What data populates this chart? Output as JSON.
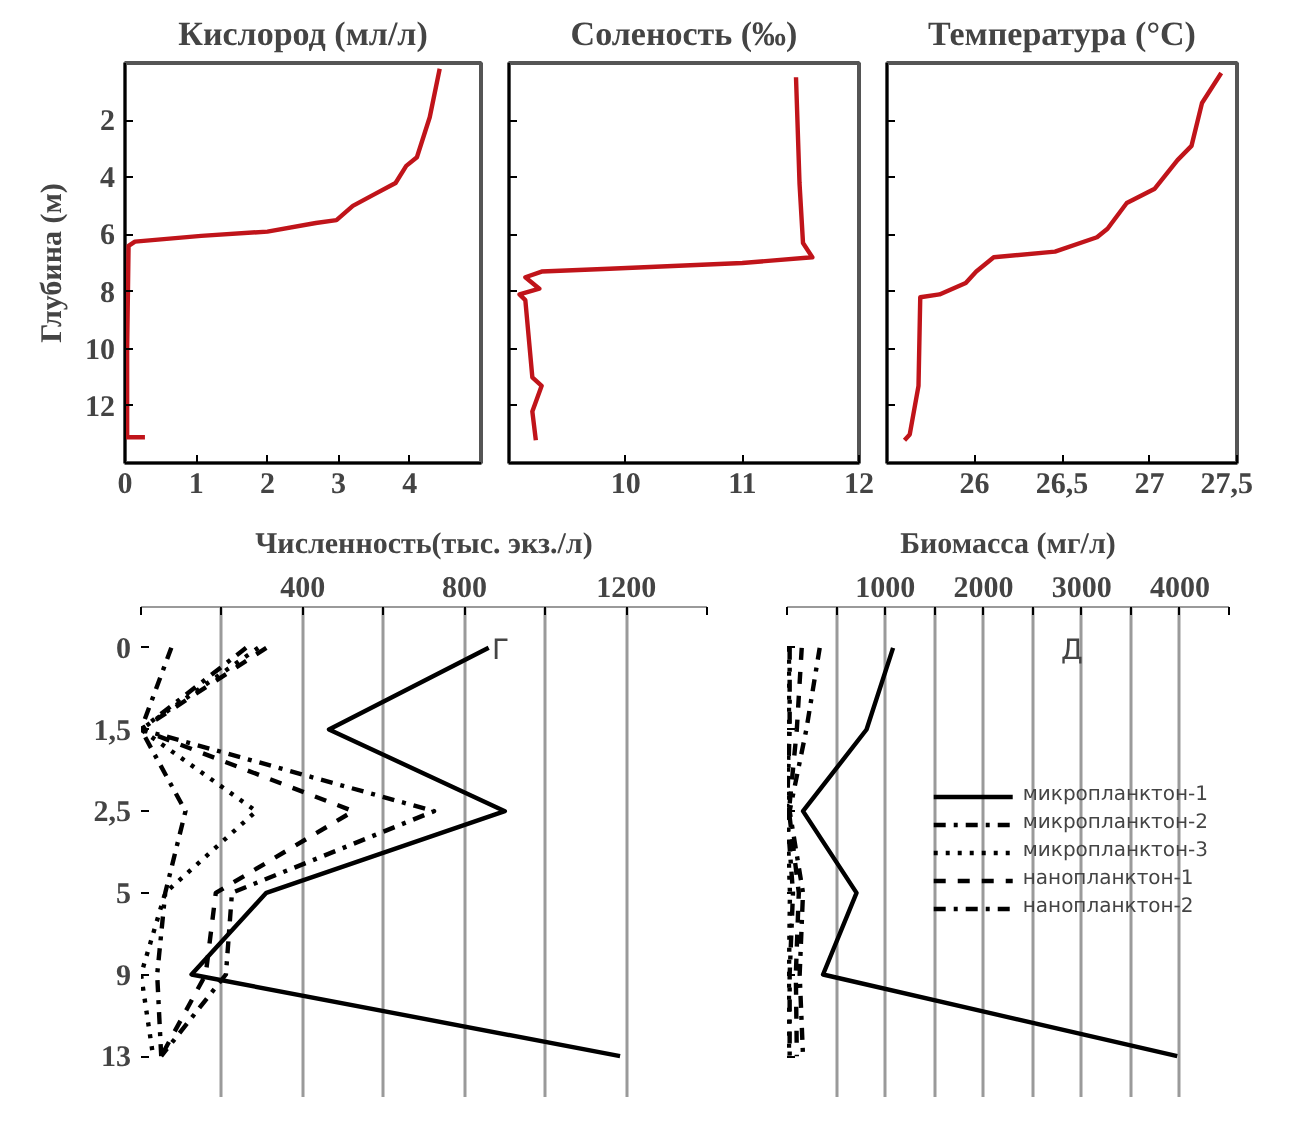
{
  "chart_data": [
    {
      "type": "line",
      "title": "Кислород (мл/л)",
      "ylabel": "Глубина (м)",
      "xlim": [
        0,
        5
      ],
      "xticks": [
        0,
        1,
        2,
        3,
        4
      ],
      "ylim": [
        14,
        0
      ],
      "yticks": [
        2,
        4,
        6,
        8,
        10,
        12
      ],
      "grid": false,
      "series": [
        {
          "color": "#c0141a",
          "x": [
            4.42,
            4.28,
            4.1,
            3.95,
            3.8,
            3.5,
            3.2,
            2.97,
            2.68,
            2.0,
            1.07,
            0.14,
            0.05,
            0.03,
            0.03,
            0.28
          ],
          "values": [
            0.2,
            1.9,
            3.3,
            3.6,
            4.2,
            4.6,
            5.0,
            5.5,
            5.6,
            5.9,
            6.05,
            6.25,
            6.4,
            10.0,
            13.1,
            13.1
          ]
        }
      ]
    },
    {
      "type": "line",
      "title": "Соленость (‰)",
      "xlim": [
        9,
        12
      ],
      "xticks": [
        10,
        11,
        12
      ],
      "ylim": [
        14,
        0
      ],
      "yticks": [
        2,
        4,
        6,
        8,
        10,
        12
      ],
      "grid": false,
      "tick_labels": "x",
      "series": [
        {
          "color": "#c0141a",
          "x": [
            11.46,
            11.49,
            11.52,
            11.6,
            11.0,
            9.86,
            9.28,
            9.14,
            9.26,
            9.09,
            9.14,
            9.2,
            9.28,
            9.2,
            9.23
          ],
          "values": [
            0.5,
            4.2,
            6.3,
            6.8,
            7.0,
            7.2,
            7.3,
            7.5,
            7.9,
            8.1,
            8.3,
            11.0,
            11.3,
            12.2,
            13.2
          ]
        }
      ]
    },
    {
      "type": "line",
      "title": "Температура (°C)",
      "xlim": [
        25.5,
        27.5
      ],
      "xticks": [
        26,
        {
          "value": 26.5,
          "label": "26,5"
        },
        27,
        {
          "value": 27.5,
          "label": "27,5"
        }
      ],
      "ylim": [
        14,
        0
      ],
      "yticks": [
        2,
        4,
        6,
        8,
        10,
        12
      ],
      "grid": false,
      "tick_labels": "x",
      "series": [
        {
          "color": "#c0141a",
          "x": [
            27.41,
            27.3,
            27.24,
            27.16,
            27.03,
            26.87,
            26.76,
            26.7,
            26.46,
            26.11,
            26.01,
            25.95,
            25.8,
            25.69,
            25.68,
            25.63,
            25.6
          ],
          "values": [
            0.35,
            1.4,
            2.9,
            3.4,
            4.4,
            4.9,
            5.8,
            6.1,
            6.6,
            6.8,
            7.3,
            7.7,
            8.1,
            8.2,
            11.3,
            13.0,
            13.2
          ]
        }
      ]
    },
    {
      "type": "line",
      "orientation": "horizontal",
      "xlabel": "Численность(тыс. экз./л)",
      "categories": [
        "0",
        "1,5",
        "2,5",
        "5",
        "9",
        "13"
      ],
      "xlim": [
        0,
        1400
      ],
      "xticks": [
        {
          "value": 0,
          "label": null
        },
        {
          "value": 200,
          "label": null
        },
        400,
        {
          "value": 600,
          "label": null
        },
        800,
        {
          "value": 1000,
          "label": null
        },
        1200,
        {
          "value": 1400,
          "label": null
        }
      ],
      "grid": "x",
      "annotations": [
        "Г"
      ],
      "series": [
        {
          "color": "#000000",
          "line_style": "solid",
          "values": [
            860,
            465,
            900,
            310,
            125,
            1185
          ]
        },
        {
          "color": "#000000",
          "line_style": "dashdot",
          "values": [
            260,
            0,
            725,
            225,
            210,
            50
          ]
        },
        {
          "color": "#000000",
          "line_style": "dotted",
          "values": [
            290,
            0,
            285,
            60,
            0,
            30
          ]
        },
        {
          "color": "#000000",
          "line_style": "dashed",
          "values": [
            310,
            0,
            525,
            185,
            160,
            50
          ]
        },
        {
          "color": "#000000",
          "line_style": "dashdot",
          "values": [
            75,
            0,
            110,
            60,
            40,
            50
          ]
        }
      ]
    },
    {
      "type": "line",
      "orientation": "horizontal",
      "xlabel": "Биомасса (мг/л)",
      "categories": [
        null,
        null,
        null,
        null,
        null,
        null
      ],
      "xlim": [
        0,
        4500
      ],
      "xticks": [
        {
          "value": 0,
          "label": null
        },
        {
          "value": 500,
          "label": null
        },
        1000,
        {
          "value": 1500,
          "label": null
        },
        2000,
        {
          "value": 2500,
          "label": null
        },
        3000,
        {
          "value": 3500,
          "label": null
        },
        4000,
        {
          "value": 4500,
          "label": null
        }
      ],
      "grid": "x",
      "tick_labels": "x",
      "legend": "right",
      "annotations": [
        "Д"
      ],
      "series": [
        {
          "name": "микропланктон-1",
          "color": "#000000",
          "line_style": "solid",
          "values": [
            1080,
            810,
            163,
            708,
            367,
            3973
          ]
        },
        {
          "name": "микропланктон-2",
          "color": "#000000",
          "line_style": "dashdot",
          "values": [
            333,
            197,
            27,
            163,
            129,
            163
          ]
        },
        {
          "name": "микропланктон-3",
          "color": "#000000",
          "line_style": "dotted",
          "values": [
            20,
            20,
            0,
            30,
            20,
            20
          ]
        },
        {
          "name": "нанопланктон-1",
          "color": "#000000",
          "line_style": "dashed",
          "values": [
            150,
            100,
            20,
            120,
            90,
            100
          ]
        },
        {
          "name": "нанопланктон-2",
          "color": "#000000",
          "line_style": "dashdot",
          "values": [
            27,
            27,
            0,
            61,
            27,
            27
          ]
        }
      ]
    }
  ]
}
